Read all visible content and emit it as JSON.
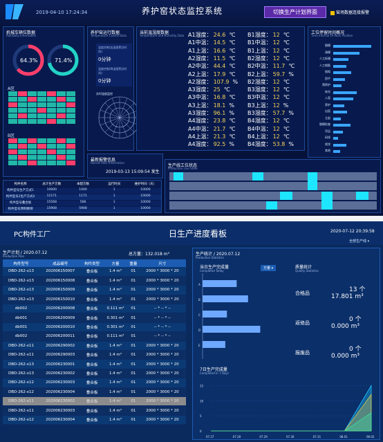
{
  "top": {
    "datetime": "2019-04-10 17:24:34",
    "title": "养护窑状态监控系统",
    "switch_label": "切换生产计划界面",
    "legend": "窑场数据连接报警",
    "env_panel": {
      "title": "机械车辆位数据",
      "sub": "Rail/Dolly Information",
      "gauge1": "64.3%",
      "gauge2": "71.4%",
      "a_label": "A区",
      "b_label": "B区"
    },
    "ctrl_panel": {
      "title": "养护窑运行数据",
      "sub": "Temperature Control Data",
      "line1": "温度控制(加温报警总时间):",
      "val1": "0分钟",
      "line2": "温度控制(降温报警总时间):",
      "val2": "0分钟",
      "radar_title": "实时温度监控"
    },
    "th_panel": {
      "title": "当前温湿度数据",
      "sub": "Temperature and Humidity Data",
      "left": [
        {
          "label": "A1湿度：",
          "value": "24.6",
          "unit": "℃"
        },
        {
          "label": "A1中温：",
          "value": "14.5",
          "unit": "℃"
        },
        {
          "label": "A1上温：",
          "value": "16.6",
          "unit": "℃"
        },
        {
          "label": "A2湿度：",
          "value": "11.5",
          "unit": "℃"
        },
        {
          "label": "A2中温：",
          "value": "44.4",
          "unit": "℃"
        },
        {
          "label": "A2上温：",
          "value": "17.9",
          "unit": "℃"
        },
        {
          "label": "A2湿度：",
          "value": "107.9",
          "unit": "%"
        },
        {
          "label": "A3湿度：",
          "value": "25",
          "unit": "℃"
        },
        {
          "label": "A3中温：",
          "value": "16.8",
          "unit": "℃"
        },
        {
          "label": "A3上温：",
          "value": "18.1",
          "unit": "%"
        },
        {
          "label": "A3湿度：",
          "value": "96.1",
          "unit": "%"
        },
        {
          "label": "A4湿度：",
          "value": "23.8",
          "unit": "℃"
        },
        {
          "label": "A4中温：",
          "value": "21.7",
          "unit": "℃"
        },
        {
          "label": "A4上温：",
          "value": "21.3",
          "unit": "℃"
        },
        {
          "label": "A4湿度：",
          "value": "92.5",
          "unit": "%"
        }
      ],
      "right": [
        {
          "label": "B1湿度：",
          "value": "12",
          "unit": "℃"
        },
        {
          "label": "B1中温：",
          "value": "12",
          "unit": "℃"
        },
        {
          "label": "B1上温：",
          "value": "12",
          "unit": "℃"
        },
        {
          "label": "B2湿度：",
          "value": "12",
          "unit": "℃"
        },
        {
          "label": "B2中温：",
          "value": "11.7",
          "unit": "℃"
        },
        {
          "label": "B2上温：",
          "value": "59.7",
          "unit": "%"
        },
        {
          "label": "B2湿度：",
          "value": "12",
          "unit": "℃"
        },
        {
          "label": "B3湿度：",
          "value": "12",
          "unit": "℃"
        },
        {
          "label": "B3中温：",
          "value": "12",
          "unit": "℃"
        },
        {
          "label": "B3上温：",
          "value": "12",
          "unit": "%"
        },
        {
          "label": "B3湿度：",
          "value": "57.7",
          "unit": "%"
        },
        {
          "label": "B4湿度：",
          "value": "12",
          "unit": "℃"
        },
        {
          "label": "B4中温：",
          "value": "12",
          "unit": "℃"
        },
        {
          "label": "B4上温：",
          "value": "12",
          "unit": "℃"
        },
        {
          "label": "B4湿度：",
          "value": "53.8",
          "unit": "%"
        }
      ]
    },
    "pos_panel": {
      "title": "工位停留时间概况",
      "sub": "Time Interval Of Work Position",
      "rows": [
        {
          "label": "脱模",
          "value": 0.88
        },
        {
          "label": "清模",
          "value": 0.62
        },
        {
          "label": "人工拆模",
          "value": 0.36
        },
        {
          "label": "人工钢筋",
          "value": 0.3
        },
        {
          "label": "振捣",
          "value": 0.42
        },
        {
          "label": "刮平",
          "value": 0.28
        },
        {
          "label": "预养护",
          "value": 0.2
        },
        {
          "label": "抹光",
          "value": 0.55
        },
        {
          "label": "入窑",
          "value": 0.47
        },
        {
          "label": "养护",
          "value": 0.25
        },
        {
          "label": "出窑",
          "value": 0.33
        },
        {
          "label": "立起",
          "value": 0.18
        },
        {
          "label": "脱模检查",
          "value": 0.4
        },
        {
          "label": "吊运",
          "value": 0.22
        },
        {
          "label": "码垛",
          "value": 0.12
        },
        {
          "label": "喷涂",
          "value": 0.3
        },
        {
          "label": "其他",
          "value": 0.16
        }
      ]
    },
    "alarm_panel": {
      "title": "最新报警信息",
      "sub": "Recent Alert Information",
      "msg": "2019-03-13 15:09:54 发生"
    },
    "line_panel": {
      "title": "生产线工位状态",
      "sub": "Production Line State"
    },
    "bottom_table": {
      "headers": [
        "构件名称",
        "总计生产方数",
        "本配方数",
        "运行时间",
        "维护时间（天）"
      ],
      "rows": [
        [
          "构件型号生产方式1",
          "10000",
          "1000",
          "1",
          "10000"
        ],
        [
          "构件型号2生产方式2",
          "11171",
          "1171",
          "1",
          "10000"
        ],
        [
          "构件型号叠合板",
          "15568",
          "568",
          "1",
          "10000"
        ],
        [
          "构件型号预制楼梯",
          "15908",
          "5908",
          "1",
          "10000"
        ]
      ]
    }
  },
  "bottom": {
    "factory": "PC构件工厂",
    "title": "日生产进度看板",
    "date": "2020-07-12 20:39:58",
    "select": "全部生产线 ▾",
    "plan_title": "生产计划 / 2020.07.12",
    "plan_sub": "Production Plan",
    "total": "总方量：132.018 m³",
    "headers": [
      "构件型号",
      "成品编号",
      "构件类型",
      "方量",
      "重量",
      "尺寸"
    ],
    "rows": [
      [
        "DBD-262-x13",
        "202006150007",
        "叠合板",
        "1.4 m³",
        "01",
        "2000 * 3000 * 20"
      ],
      [
        "DBD-262-x13",
        "202006150008",
        "叠合板",
        "1.4 m³",
        "01",
        "2000 * 3000 * 20"
      ],
      [
        "DBD-262-x13",
        "202006150009",
        "叠合板",
        "1.4 m³",
        "01",
        "2000 * 3000 * 20"
      ],
      [
        "DBD-262-x13",
        "202006150010",
        "叠合板",
        "1.4 m³",
        "01",
        "2000 * 3000 * 20"
      ],
      [
        "db002",
        "202006200008",
        "叠合板",
        "0.111 m³",
        "01",
        "-- * -- * --"
      ],
      [
        "db001",
        "202006200009",
        "叠合板",
        "0.301 m³",
        "01",
        "-- * -- * --"
      ],
      [
        "db001",
        "202006200010",
        "叠合板",
        "0.301 m³",
        "01",
        "-- * -- * --"
      ],
      [
        "db002",
        "202006200011",
        "叠合板",
        "0.111 m³",
        "01",
        "-- * -- * --"
      ],
      [
        "DBD-262-x11",
        "202006290002",
        "叠合板",
        "1.4 m³",
        "01",
        "2000 * 3000 * 20"
      ],
      [
        "DBD-262-x11",
        "202006290003",
        "叠合板",
        "1.4 m³",
        "01",
        "2000 * 3000 * 20"
      ],
      [
        "DBD-262-x13",
        "202006230001",
        "叠合板",
        "1.4 m³",
        "01",
        "2000 * 3000 * 20"
      ],
      [
        "DBD-262-x13",
        "202006230002",
        "叠合板",
        "1.4 m³",
        "01",
        "2000 * 3000 * 20"
      ],
      [
        "DBD-262-x12",
        "202006230003",
        "叠合板",
        "1.4 m³",
        "01",
        "2000 * 3000 * 20"
      ],
      [
        "DBD-262-x12",
        "202006230004",
        "叠合板",
        "1.4 m³",
        "01",
        "2000 * 3000 * 20"
      ],
      [
        "DBD-262-x11",
        "202006230002",
        "叠合板",
        "1.4 m³",
        "01",
        "2000 * 3000 * 20"
      ],
      [
        "DBD-262-x11",
        "202006230003",
        "叠合板",
        "1.4 m³",
        "01",
        "2000 * 3000 * 20"
      ],
      [
        "DBD-262-x12",
        "202006230004",
        "叠合板",
        "1.4 m³",
        "01",
        "2000 * 3000 * 20"
      ]
    ],
    "stats_title": "生产统计 / 2020.07.12",
    "stats_sub": "Production Statistics",
    "today_title": "当日生产完成量",
    "today_sub": "Completed Today",
    "type_select": "方量 ▾",
    "quality_title": "质量统计",
    "quality_sub": "Quality Statistics",
    "quality": [
      {
        "label": "合格品",
        "count": "13 个",
        "volume": "17.801 m³"
      },
      {
        "label": "返修品",
        "count": "0 个",
        "volume": "0.000 m³"
      },
      {
        "label": "报废品",
        "count": "0 个",
        "volume": "0.000 m³"
      }
    ],
    "week_title": "7日生产完成量",
    "week_sub": "Completed In 7 Days",
    "week_x": [
      "07.27",
      "07.28",
      "07.29",
      "07.30",
      "07.31",
      "08.01",
      "08.02"
    ]
  },
  "chart_data": [
    {
      "type": "bar",
      "title": "当日生产完成量",
      "categories": [
        "A",
        "B",
        "C",
        "D",
        "E"
      ],
      "values": [
        4.2,
        5.6,
        3.0,
        7.1,
        2.8
      ],
      "xlim": [
        0,
        8
      ]
    },
    {
      "type": "area",
      "title": "7日生产完成量",
      "x": [
        "07.27",
        "07.28",
        "07.29",
        "07.30",
        "07.31",
        "08.01",
        "08.02"
      ],
      "series": [
        {
          "values": [
            0,
            0,
            0,
            0,
            0,
            0,
            15
          ]
        },
        {
          "values": [
            0,
            0,
            0,
            0,
            0,
            0,
            12
          ]
        },
        {
          "values": [
            0,
            0,
            0,
            0,
            0,
            0,
            6
          ]
        }
      ],
      "ylim": [
        0,
        16
      ],
      "yticks": [
        0,
        5,
        10,
        15
      ]
    }
  ]
}
